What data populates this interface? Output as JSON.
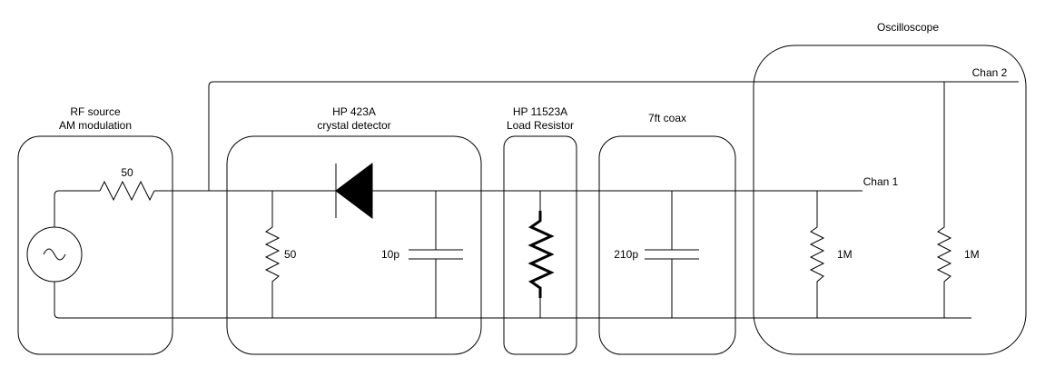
{
  "blocks": {
    "rf_source": {
      "label_line1": "RF source",
      "label_line2": "AM modulation",
      "resistor_value": "50"
    },
    "detector": {
      "label_line1": "HP 423A",
      "label_line2": "crystal detector",
      "resistor_value": "50",
      "capacitor_value": "10p"
    },
    "load": {
      "label_line1": "HP 11523A",
      "label_line2": "Load Resistor"
    },
    "coax": {
      "label": "7ft coax",
      "capacitor_value": "210p"
    },
    "scope": {
      "label": "Oscilloscope",
      "chan1": "Chan 1",
      "chan2": "Chan 2",
      "r1_value": "1M",
      "r2_value": "1M"
    }
  }
}
